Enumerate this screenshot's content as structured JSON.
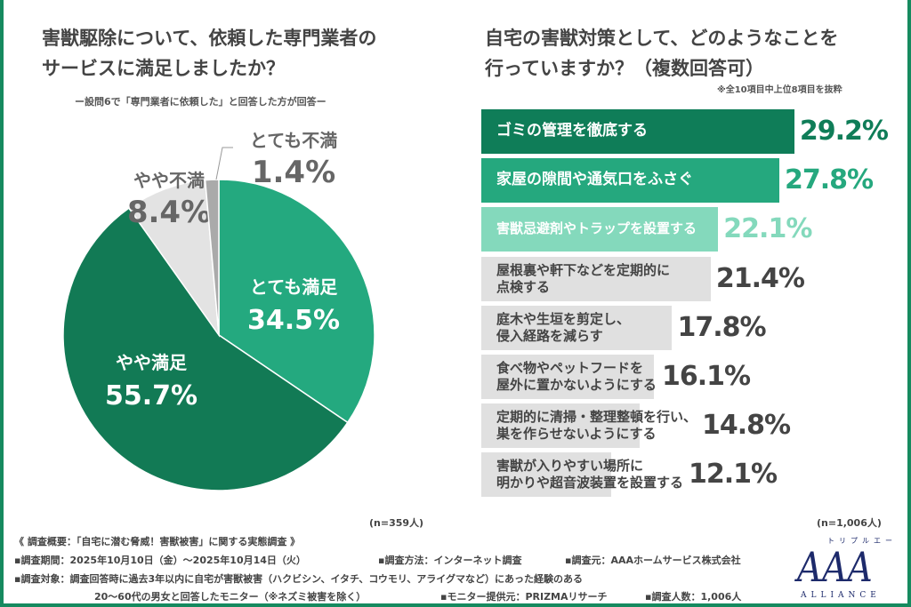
{
  "chart_data": [
    {
      "type": "pie",
      "title": "害獣駆除について、依頼した専門業者のサービスに満足しましたか？",
      "subtitle": "ー設問6で「専門業者に依頼した」と回答した方が回答ー",
      "n_label": "(n=359人)",
      "slices": [
        {
          "label": "とても満足",
          "value": 34.5,
          "value_label": "34.5%",
          "color": "#24a97f"
        },
        {
          "label": "やや満足",
          "value": 55.7,
          "value_label": "55.7%",
          "color": "#127a55"
        },
        {
          "label": "やや不満",
          "value": 8.4,
          "value_label": "8.4%",
          "color": "#e3e3e3"
        },
        {
          "label": "とても不満",
          "value": 1.4,
          "value_label": "1.4%",
          "color": "#aaaaaa"
        }
      ]
    },
    {
      "type": "bar",
      "orientation": "horizontal",
      "title": "自宅の害獣対策として、どのようなことを行っていますか？（複数回答可）",
      "note": "※全10項目中上位8項目を抜粋",
      "n_label": "(n=1,006人)",
      "categories": [
        "ゴミの管理を徹底する",
        "家屋の隙間や通気口をふさぐ",
        "害獣忌避剤やトラップを設置する",
        "屋根裏や軒下などを定期的に\n点検する",
        "庭木や生垣を剪定し、\n侵入経路を減らす",
        "食べ物やペットフードを\n屋外に置かないようにする",
        "定期的に清掃・整理整頓を行い、\n巣を作らせないようにする",
        "害獣が入りやすい場所に\n明かりや超音波装置を設置する"
      ],
      "values": [
        29.2,
        27.8,
        22.1,
        21.4,
        17.8,
        16.1,
        14.8,
        12.1
      ],
      "value_labels": [
        "29.2%",
        "27.8%",
        "22.1%",
        "21.4%",
        "17.8%",
        "16.1%",
        "14.8%",
        "12.1%"
      ],
      "colors": {
        "rank1": "#0f7d58",
        "rank2": "#25a87e",
        "rank3": "#84d9bc",
        "others": "#e0e0e0"
      }
    }
  ],
  "footer": {
    "overview": "《 調査概要：「自宅に潜む脅威！害獣被害」に関する実態調査 》",
    "period": "▪調査期間：2025年10月10日（金）～2025年10月14日（火）",
    "method": "▪調査方法：インターネット調査",
    "source": "▪調査元：AAAホームサービス株式会社",
    "target": "▪調査対象：調査回答時に過去3年以内に自宅が害獣被害（ハクビシン、イタチ、コウモリ、アライグマなど）にあった経験のある",
    "target2": "20～60代の男女と回答したモニター（※ネズミ被害を除く）",
    "provider": "▪モニター提供元：PRIZMAリサーチ",
    "count": "▪調査人数：1,006人"
  },
  "logo": {
    "ruby": "トリプルエー",
    "main": "AAA",
    "sub": "ALLIANCE"
  }
}
